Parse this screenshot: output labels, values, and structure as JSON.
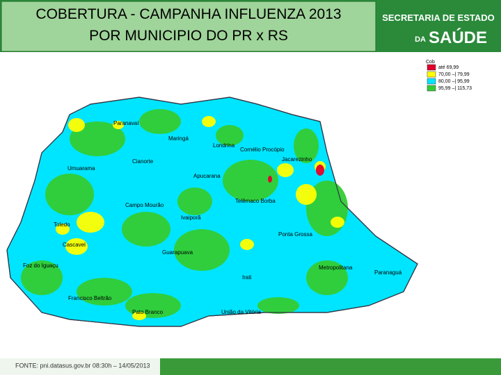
{
  "header": {
    "title_lines": [
      "COBERTURA - CAMPANHA INFLUENZA 2013",
      "POR MUNICIPIO DO PR x RS"
    ]
  },
  "logo": {
    "line1": "SECRETARIA DE ESTADO",
    "line2_prefix": "DA",
    "line2": "SAÚDE"
  },
  "legend": {
    "title": "Cob",
    "items": [
      {
        "label": "até 69,99",
        "color": "#e3002b"
      },
      {
        "label": "70,00 –| 79,99",
        "color": "#ffff00"
      },
      {
        "label": "80,00 –| 95,99",
        "color": "#00e5ff"
      },
      {
        "label": "95,99 –| 115,73",
        "color": "#33cc33"
      }
    ]
  },
  "map": {
    "regions": [
      "Paranavaí",
      "Maringá",
      "Londrina",
      "Cornélio Procópio",
      "Jacarezinho",
      "Umuarama",
      "Cianorte",
      "Apucarana",
      "Toledo",
      "Campo Mourão",
      "Telêmaco Borba",
      "Ivaiporã",
      "Ponta Grossa",
      "Cascavel",
      "Guarapuava",
      "Foz do Iguaçu",
      "Irati",
      "Metropolitana",
      "Paranaguá",
      "Francisco Beltrão",
      "Pato Branco",
      "União da Vitória"
    ]
  },
  "footer": {
    "source": "FONTE: pni.datasus.gov.br 08:30h – 14/05/2013"
  }
}
